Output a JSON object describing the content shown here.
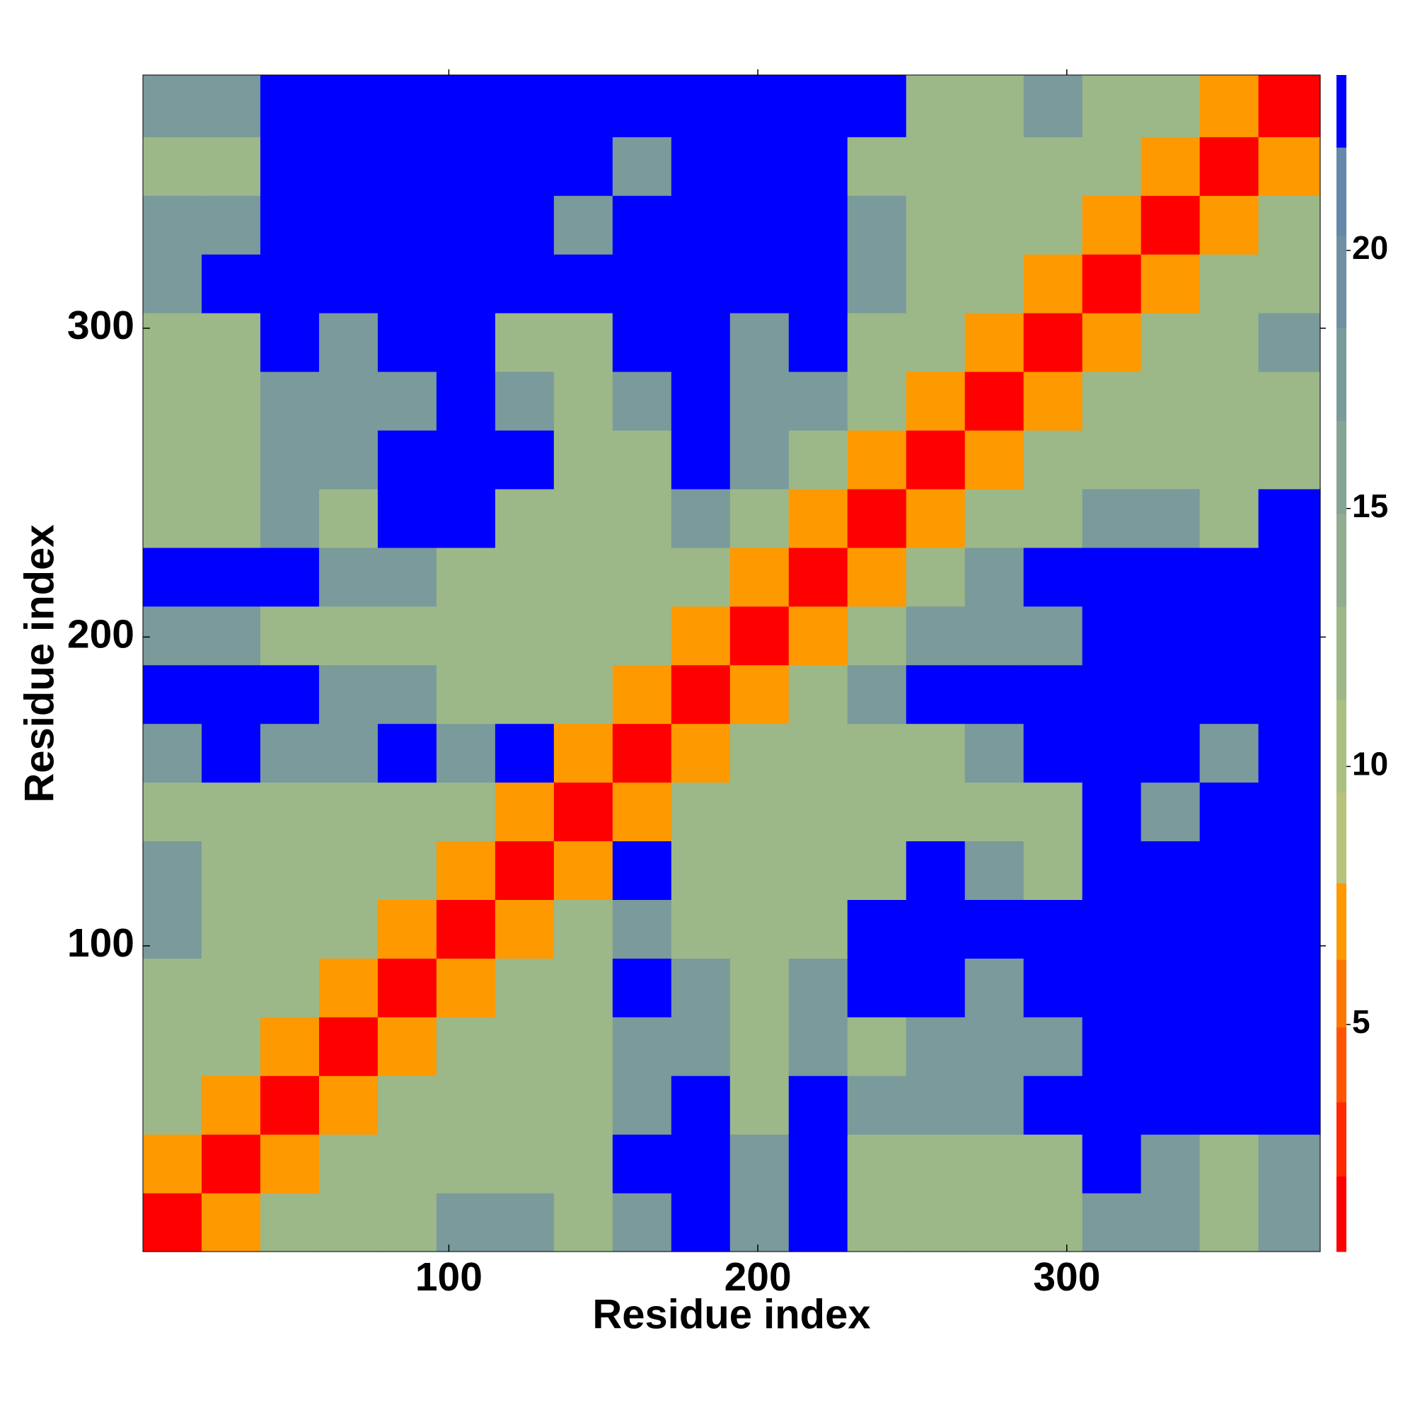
{
  "chart_data": {
    "type": "heatmap",
    "xlabel": "Residue index",
    "ylabel": "Residue index",
    "xlim": [
      1,
      382
    ],
    "ylim": [
      1,
      382
    ],
    "xticks": [
      100,
      200,
      300
    ],
    "yticks": [
      100,
      200,
      300
    ],
    "bins": [
      1,
      20,
      39,
      58,
      77,
      96,
      115,
      134,
      153,
      172,
      191,
      210,
      229,
      248,
      267,
      286,
      305,
      324,
      343,
      362,
      382
    ],
    "values": [
      [
        2,
        7,
        12,
        12,
        12,
        17,
        17,
        12,
        17,
        23,
        17,
        23,
        12,
        12,
        12,
        12,
        17,
        17,
        12,
        17
      ],
      [
        7,
        2,
        7,
        12,
        12,
        12,
        12,
        12,
        23,
        23,
        17,
        23,
        12,
        12,
        12,
        12,
        23,
        17,
        12,
        17
      ],
      [
        12,
        7,
        2,
        7,
        12,
        12,
        12,
        12,
        17,
        23,
        12,
        23,
        17,
        17,
        17,
        23,
        23,
        23,
        23,
        23
      ],
      [
        12,
        12,
        7,
        2,
        7,
        12,
        12,
        12,
        17,
        17,
        12,
        17,
        12,
        17,
        17,
        17,
        23,
        23,
        23,
        23
      ],
      [
        12,
        12,
        12,
        7,
        2,
        7,
        12,
        12,
        23,
        17,
        12,
        17,
        23,
        23,
        17,
        23,
        23,
        23,
        23,
        23
      ],
      [
        17,
        12,
        12,
        12,
        7,
        2,
        7,
        12,
        17,
        12,
        12,
        12,
        23,
        23,
        23,
        23,
        23,
        23,
        23,
        23
      ],
      [
        17,
        12,
        12,
        12,
        12,
        7,
        2,
        7,
        23,
        12,
        12,
        12,
        12,
        23,
        17,
        12,
        23,
        23,
        23,
        23
      ],
      [
        12,
        12,
        12,
        12,
        12,
        12,
        7,
        2,
        7,
        12,
        12,
        12,
        12,
        12,
        12,
        12,
        23,
        17,
        23,
        23
      ],
      [
        17,
        23,
        17,
        17,
        23,
        17,
        23,
        7,
        2,
        7,
        12,
        12,
        12,
        12,
        17,
        23,
        23,
        23,
        17,
        23
      ],
      [
        23,
        23,
        23,
        17,
        17,
        12,
        12,
        12,
        7,
        2,
        7,
        12,
        17,
        23,
        23,
        23,
        23,
        23,
        23,
        23
      ],
      [
        17,
        17,
        12,
        12,
        12,
        12,
        12,
        12,
        12,
        7,
        2,
        7,
        12,
        17,
        17,
        17,
        23,
        23,
        23,
        23
      ],
      [
        23,
        23,
        23,
        17,
        17,
        12,
        12,
        12,
        12,
        12,
        7,
        2,
        7,
        12,
        17,
        23,
        23,
        23,
        23,
        23
      ],
      [
        12,
        12,
        17,
        12,
        23,
        23,
        12,
        12,
        12,
        17,
        12,
        7,
        2,
        7,
        12,
        12,
        17,
        17,
        12,
        23
      ],
      [
        12,
        12,
        17,
        17,
        23,
        23,
        23,
        12,
        12,
        23,
        17,
        12,
        7,
        2,
        7,
        12,
        12,
        12,
        12,
        12
      ],
      [
        12,
        12,
        17,
        17,
        17,
        23,
        17,
        12,
        17,
        23,
        17,
        17,
        12,
        7,
        2,
        7,
        12,
        12,
        12,
        12
      ],
      [
        12,
        12,
        23,
        17,
        23,
        23,
        12,
        12,
        23,
        23,
        17,
        23,
        12,
        12,
        7,
        2,
        7,
        12,
        12,
        17
      ],
      [
        17,
        23,
        23,
        23,
        23,
        23,
        23,
        23,
        23,
        23,
        23,
        23,
        17,
        12,
        12,
        7,
        2,
        7,
        12,
        12
      ],
      [
        17,
        17,
        23,
        23,
        23,
        23,
        23,
        17,
        23,
        23,
        23,
        23,
        17,
        12,
        12,
        12,
        7,
        2,
        7,
        12
      ],
      [
        12,
        12,
        23,
        23,
        23,
        23,
        23,
        23,
        17,
        23,
        23,
        23,
        12,
        12,
        12,
        12,
        12,
        7,
        2,
        7
      ],
      [
        17,
        17,
        23,
        23,
        23,
        23,
        23,
        23,
        23,
        23,
        23,
        23,
        23,
        12,
        12,
        17,
        12,
        12,
        7,
        2
      ]
    ],
    "colorbar": {
      "zlim": [
        0.6,
        23.4
      ],
      "ticks": [
        5,
        10,
        15,
        20
      ],
      "levels": [
        0.6,
        2.06,
        3.5,
        4.95,
        6.26,
        7.74,
        9.5,
        11.3,
        13.1,
        14.9,
        16.7,
        18.5,
        20.3,
        22,
        23.4
      ],
      "colors": [
        "#ff0000",
        "#ff2a00",
        "#ff5500",
        "#ff7700",
        "#ff9900",
        "#b9c27a",
        "#a8c080",
        "#9cb888",
        "#90ad8e",
        "#86a494",
        "#7a9a9c",
        "#6f90a2",
        "#6688aa",
        "#0000ff"
      ]
    }
  }
}
